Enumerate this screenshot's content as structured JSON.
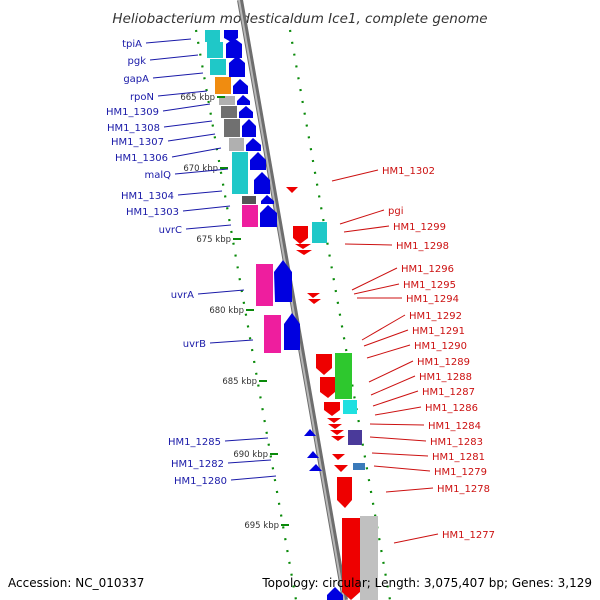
{
  "title": "Heliobacterium modesticaldum Ice1, complete genome",
  "accession": "Accession: NC_010337",
  "topology": "Topology: circular; Length: 3,075,407 bp; Genes: 3,129",
  "colors": {
    "left_label": "#1a1aa8",
    "right_label": "#cc1111",
    "forward_arrow": "#0000e0",
    "reverse_arrow": "#ee0000",
    "backbone": "#8a8a8a",
    "tick": "#0a8a0a"
  },
  "scale_labels": [
    "665 kbp",
    "670 kbp",
    "675 kbp",
    "680 kbp",
    "685 kbp",
    "690 kbp",
    "695 kbp"
  ],
  "left_genes": [
    "tpiA",
    "pgk",
    "gapA",
    "rpoN",
    "HM1_1309",
    "HM1_1308",
    "HM1_1307",
    "HM1_1306",
    "malQ",
    "HM1_1304",
    "HM1_1303",
    "uvrC",
    "uvrA",
    "uvrB",
    "HM1_1285",
    "HM1_1282",
    "HM1_1280"
  ],
  "right_genes": [
    "HM1_1302",
    "pgi",
    "HM1_1299",
    "HM1_1298",
    "HM1_1296",
    "HM1_1295",
    "HM1_1294",
    "HM1_1292",
    "HM1_1291",
    "HM1_1290",
    "HM1_1289",
    "HM1_1288",
    "HM1_1287",
    "HM1_1286",
    "HM1_1284",
    "HM1_1283",
    "HM1_1281",
    "HM1_1279",
    "HM1_1278",
    "HM1_1277"
  ]
}
